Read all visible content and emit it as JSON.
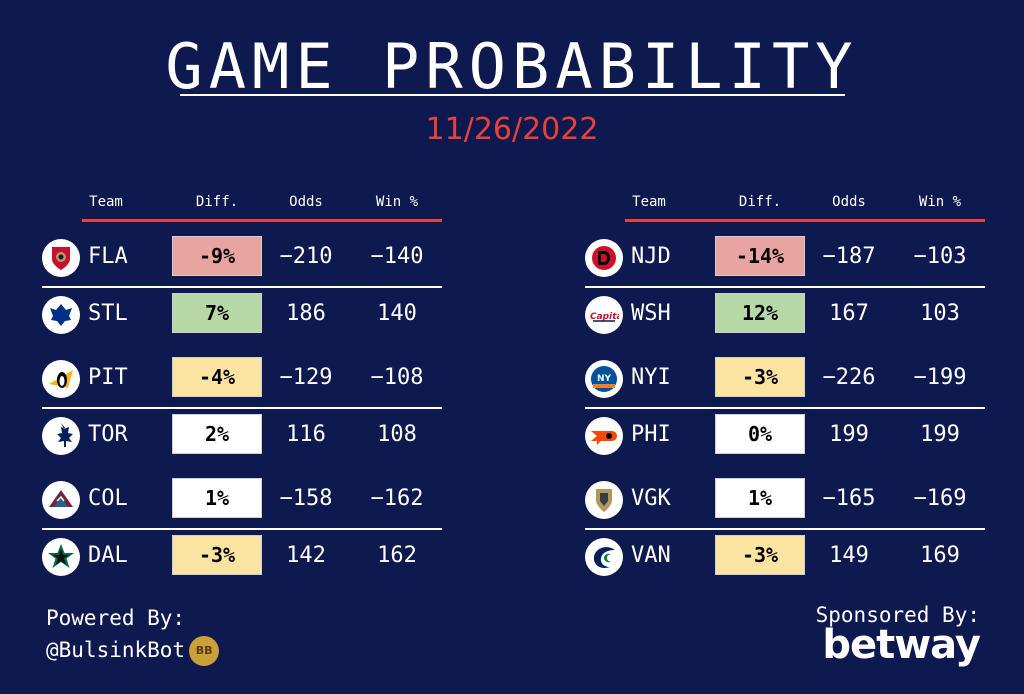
{
  "title": "GAME PROBABILITY",
  "date": "11/26/2022",
  "headers": {
    "team": "Team",
    "diff": "Diff.",
    "odds": "Odds",
    "win": "Win %"
  },
  "left_table": [
    {
      "team": "FLA",
      "diff": "-9%",
      "odds": "−210",
      "win": "−140",
      "diff_color": "#e8a4a0",
      "logo": "panthers-logo-icon"
    },
    {
      "team": "STL",
      "diff": "7%",
      "odds": "186",
      "win": "140",
      "diff_color": "#b5d8a6",
      "logo": "blues-logo-icon"
    },
    {
      "team": "PIT",
      "diff": "-4%",
      "odds": "−129",
      "win": "−108",
      "diff_color": "#fbe3a2",
      "logo": "penguins-logo-icon"
    },
    {
      "team": "TOR",
      "diff": "2%",
      "odds": "116",
      "win": "108",
      "diff_color": "#ffffff",
      "logo": "maple-leafs-logo-icon"
    },
    {
      "team": "COL",
      "diff": "1%",
      "odds": "−158",
      "win": "−162",
      "diff_color": "#ffffff",
      "logo": "avalanche-logo-icon"
    },
    {
      "team": "DAL",
      "diff": "-3%",
      "odds": "142",
      "win": "162",
      "diff_color": "#fbe3a2",
      "logo": "stars-logo-icon"
    }
  ],
  "right_table": [
    {
      "team": "NJD",
      "diff": "-14%",
      "odds": "−187",
      "win": "−103",
      "diff_color": "#e8a4a0",
      "logo": "devils-logo-icon"
    },
    {
      "team": "WSH",
      "diff": "12%",
      "odds": "167",
      "win": "103",
      "diff_color": "#b5d8a6",
      "logo": "capitals-logo-icon"
    },
    {
      "team": "NYI",
      "diff": "-3%",
      "odds": "−226",
      "win": "−199",
      "diff_color": "#fbe3a2",
      "logo": "islanders-logo-icon"
    },
    {
      "team": "PHI",
      "diff": "0%",
      "odds": "199",
      "win": "199",
      "diff_color": "#ffffff",
      "logo": "flyers-logo-icon"
    },
    {
      "team": "VGK",
      "diff": "1%",
      "odds": "−165",
      "win": "−169",
      "diff_color": "#ffffff",
      "logo": "golden-knights-logo-icon"
    },
    {
      "team": "VAN",
      "diff": "-3%",
      "odds": "149",
      "win": "169",
      "diff_color": "#fbe3a2",
      "logo": "canucks-logo-icon"
    }
  ],
  "footer": {
    "powered_label": "Powered By:",
    "powered_handle": "@BulsinkBot",
    "badge": "BB",
    "sponsored_label": "Sponsored By:",
    "sponsor": "betway"
  }
}
